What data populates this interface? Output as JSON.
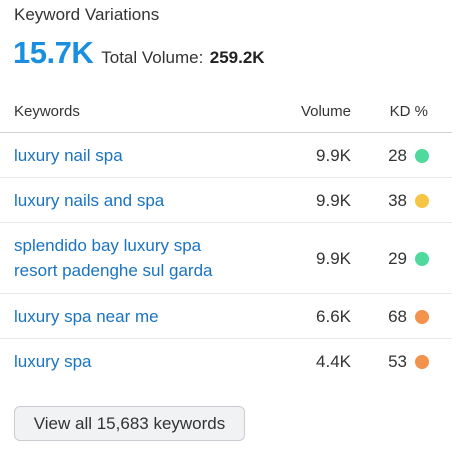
{
  "header": {
    "title": "Keyword Variations",
    "count": "15.7K",
    "total_volume_label": "Total Volume:",
    "total_volume_value": "259.2K"
  },
  "table": {
    "columns": {
      "keywords": "Keywords",
      "volume": "Volume",
      "kd": "KD %"
    },
    "rows": [
      {
        "keyword": "luxury nail spa",
        "volume": "9.9K",
        "kd": "28",
        "kd_color": "#4fd99c"
      },
      {
        "keyword": "luxury nails and spa",
        "volume": "9.9K",
        "kd": "38",
        "kd_color": "#f6c544"
      },
      {
        "keyword": "splendido bay luxury spa resort padenghe sul garda",
        "volume": "9.9K",
        "kd": "29",
        "kd_color": "#4fd99c"
      },
      {
        "keyword": "luxury spa near me",
        "volume": "6.6K",
        "kd": "68",
        "kd_color": "#f3924a"
      },
      {
        "keyword": "luxury spa",
        "volume": "4.4K",
        "kd": "53",
        "kd_color": "#f3924a"
      }
    ]
  },
  "footer": {
    "view_all_label": "View all 15,683 keywords"
  },
  "colors": {
    "accent": "#1a8fe0",
    "link": "#1a73c0"
  }
}
